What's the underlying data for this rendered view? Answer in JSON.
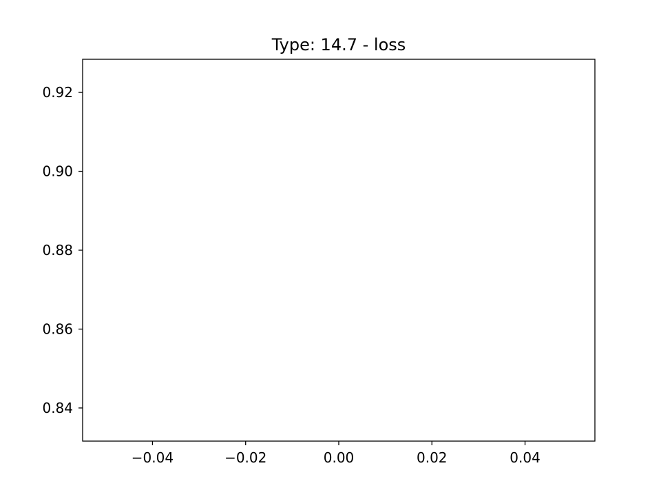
{
  "chart_data": {
    "type": "line",
    "title": "Type: 14.7 - loss",
    "xlabel": "",
    "ylabel": "",
    "xlim": [
      -0.055,
      0.055
    ],
    "ylim": [
      0.8316,
      0.9284
    ],
    "x_ticks": [
      {
        "value": -0.04,
        "label": "−0.04"
      },
      {
        "value": -0.02,
        "label": "−0.02"
      },
      {
        "value": 0.0,
        "label": "0.00"
      },
      {
        "value": 0.02,
        "label": "0.02"
      },
      {
        "value": 0.04,
        "label": "0.04"
      }
    ],
    "y_ticks": [
      {
        "value": 0.84,
        "label": "0.84"
      },
      {
        "value": 0.86,
        "label": "0.86"
      },
      {
        "value": 0.88,
        "label": "0.88"
      },
      {
        "value": 0.9,
        "label": "0.90"
      },
      {
        "value": 0.92,
        "label": "0.92"
      }
    ],
    "series": [],
    "grid": false,
    "legend": "none"
  },
  "colors": {
    "background": "#ffffff",
    "axes": "#000000",
    "text": "#000000"
  }
}
